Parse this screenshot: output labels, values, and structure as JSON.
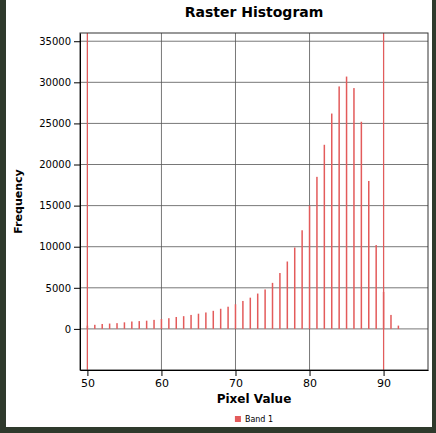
{
  "chart_data": {
    "type": "bar",
    "title": "Raster Histogram",
    "x_label": "Pixel Value",
    "y_label": "Frequency",
    "x": [
      50,
      51,
      52,
      53,
      54,
      55,
      56,
      57,
      58,
      59,
      60,
      61,
      62,
      63,
      64,
      65,
      66,
      67,
      68,
      69,
      70,
      71,
      72,
      73,
      74,
      75,
      76,
      77,
      78,
      79,
      80,
      81,
      82,
      83,
      84,
      85,
      86,
      87,
      88,
      89,
      90,
      91,
      92
    ],
    "series": [
      {
        "name": "Band 1",
        "color": "#e35b5b",
        "values": [
          400,
          500,
          600,
          650,
          700,
          800,
          900,
          950,
          1000,
          1100,
          1200,
          1300,
          1450,
          1550,
          1700,
          1850,
          2000,
          2200,
          2450,
          2700,
          3000,
          3400,
          3800,
          4300,
          4800,
          5600,
          6800,
          8200,
          9900,
          12000,
          15000,
          18500,
          22400,
          26200,
          29500,
          30700,
          29300,
          25200,
          18000,
          10200,
          4500,
          1700,
          400
        ]
      }
    ],
    "vlines": [
      50,
      90
    ],
    "xlim": [
      49,
      96
    ],
    "xticks": [
      50,
      60,
      70,
      80,
      90
    ],
    "ylim": [
      -5000,
      36000
    ],
    "yticks": [
      0,
      5000,
      10000,
      15000,
      20000,
      25000,
      30000,
      35000
    ],
    "grid": true,
    "legend": "bottom"
  }
}
